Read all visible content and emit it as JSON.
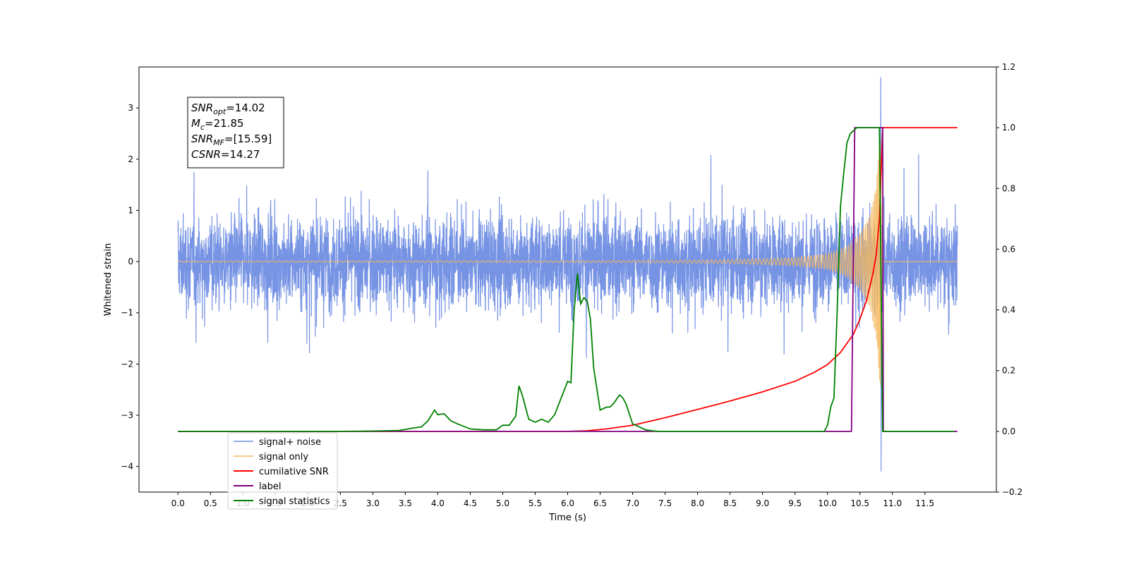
{
  "chart_data": {
    "type": "line",
    "xlabel": "Time (s)",
    "ylabel": "Whitened strain",
    "xlim": [
      -0.6,
      12.6
    ],
    "ylim_left": [
      -4.5,
      3.8
    ],
    "ylim_right": [
      -0.2,
      1.2
    ],
    "x_ticks": [
      0.0,
      0.5,
      1.0,
      1.5,
      2.0,
      2.5,
      3.0,
      3.5,
      4.0,
      4.5,
      5.0,
      5.5,
      6.0,
      6.5,
      7.0,
      7.5,
      8.0,
      8.5,
      9.0,
      9.5,
      10.0,
      10.5,
      11.0,
      11.5
    ],
    "x_tick_labels": [
      "0.0",
      "0.5",
      "1.0",
      "1.5",
      "2.0",
      "2.5",
      "3.0",
      "3.5",
      "4.0",
      "4.5",
      "5.0",
      "5.5",
      "6.0",
      "6.5",
      "7.0",
      "7.5",
      "8.0",
      "8.5",
      "9.0",
      "9.5",
      "10.0",
      "10.5",
      "11.0",
      "11.5"
    ],
    "y_ticks_left": [
      -4,
      -3,
      -2,
      -1,
      0,
      1,
      2,
      3
    ],
    "y_tick_labels_left": [
      "−4",
      "−3",
      "−2",
      "−1",
      "0",
      "1",
      "2",
      "3"
    ],
    "y_ticks_right": [
      -0.2,
      0.0,
      0.2,
      0.4,
      0.6,
      0.8,
      1.0,
      1.2
    ],
    "y_tick_labels_right": [
      "−0.2",
      "0.0",
      "0.2",
      "0.4",
      "0.6",
      "0.8",
      "1.0",
      "1.2"
    ],
    "grid": false,
    "legend_position": "lower-left",
    "annotation": {
      "lines": [
        {
          "label": "SNR",
          "sub": "opt",
          "value": "=14.02"
        },
        {
          "label": "M",
          "sub": "c",
          "value": "=21.85"
        },
        {
          "label": "SNR",
          "sub": "MF",
          "value": "=[15.59]"
        },
        {
          "label": "CSNR",
          "sub": "",
          "value": "=14.27"
        }
      ]
    },
    "series": [
      {
        "name": "signal+ noise",
        "axis": "left",
        "color": "#6f8de3",
        "style": "dense noise band about 0, typical range -1.5 to 1.5 with spikes; min -4.1 at 10.82 s, max 3.6 at 10.82 s",
        "x_range": [
          0.0,
          12.0
        ],
        "envelope": [
          1.0,
          1.0
        ]
      },
      {
        "name": "signal only",
        "axis": "left",
        "color": "#f5b860",
        "style": "chirp, amplitude grows toward merger then ends",
        "x_range": [
          0.0,
          12.0
        ],
        "envelope_points": [
          {
            "x": 0.0,
            "amp": 0.01
          },
          {
            "x": 7.0,
            "amp": 0.02
          },
          {
            "x": 8.5,
            "amp": 0.04
          },
          {
            "x": 9.5,
            "amp": 0.08
          },
          {
            "x": 10.0,
            "amp": 0.15
          },
          {
            "x": 10.3,
            "amp": 0.3
          },
          {
            "x": 10.5,
            "amp": 0.55
          },
          {
            "x": 10.65,
            "amp": 0.9
          },
          {
            "x": 10.75,
            "amp": 1.5
          },
          {
            "x": 10.82,
            "amp": 2.6
          },
          {
            "x": 10.84,
            "amp": 0.0
          }
        ]
      },
      {
        "name": "cumilative SNR",
        "axis": "right",
        "color": "#ff0000",
        "x": [
          0.0,
          6.0,
          6.3,
          6.6,
          7.0,
          7.5,
          8.0,
          8.5,
          9.0,
          9.5,
          9.8,
          10.0,
          10.2,
          10.4,
          10.5,
          10.6,
          10.7,
          10.75,
          10.8,
          10.85,
          11.2,
          11.5,
          12.0
        ],
        "y": [
          0.0,
          0.0,
          0.002,
          0.008,
          0.02,
          0.045,
          0.072,
          0.1,
          0.13,
          0.165,
          0.195,
          0.22,
          0.26,
          0.32,
          0.37,
          0.43,
          0.52,
          0.58,
          0.7,
          1.0,
          1.0,
          1.0,
          1.0
        ]
      },
      {
        "name": "label",
        "axis": "right",
        "color": "#800080",
        "x": [
          0.0,
          10.37,
          10.42,
          10.85,
          10.86,
          12.0
        ],
        "y": [
          0.0,
          0.0,
          1.0,
          1.0,
          0.0,
          0.0
        ]
      },
      {
        "name": "signal statistics",
        "axis": "right",
        "color": "#008000",
        "x": [
          0.0,
          0.5,
          1.0,
          1.5,
          2.0,
          2.5,
          3.0,
          3.4,
          3.6,
          3.75,
          3.85,
          3.95,
          4.0,
          4.1,
          4.2,
          4.3,
          4.5,
          4.7,
          4.9,
          5.0,
          5.1,
          5.2,
          5.25,
          5.3,
          5.35,
          5.4,
          5.5,
          5.6,
          5.7,
          5.8,
          5.9,
          6.0,
          6.05,
          6.1,
          6.15,
          6.2,
          6.25,
          6.3,
          6.35,
          6.4,
          6.45,
          6.5,
          6.6,
          6.65,
          6.7,
          6.8,
          6.85,
          6.9,
          7.0,
          7.05,
          7.1,
          7.2,
          7.3,
          7.4,
          7.5,
          8.0,
          9.0,
          9.95,
          10.0,
          10.05,
          10.1,
          10.15,
          10.2,
          10.25,
          10.3,
          10.35,
          10.45,
          10.55,
          10.8,
          10.85,
          11.0,
          11.5,
          11.95
        ],
        "y": [
          0.0,
          0.0,
          0.0,
          0.0,
          0.0,
          0.0,
          0.001,
          0.003,
          0.01,
          0.015,
          0.035,
          0.07,
          0.055,
          0.058,
          0.035,
          0.025,
          0.008,
          0.005,
          0.005,
          0.02,
          0.02,
          0.05,
          0.15,
          0.12,
          0.08,
          0.04,
          0.03,
          0.04,
          0.03,
          0.055,
          0.11,
          0.165,
          0.16,
          0.4,
          0.52,
          0.42,
          0.44,
          0.43,
          0.37,
          0.21,
          0.14,
          0.07,
          0.08,
          0.08,
          0.09,
          0.12,
          0.11,
          0.09,
          0.025,
          0.02,
          0.015,
          0.005,
          0.002,
          0.0,
          0.0,
          0.0,
          0.0,
          0.0,
          0.02,
          0.08,
          0.11,
          0.4,
          0.74,
          0.85,
          0.95,
          0.98,
          1.0,
          1.0,
          1.0,
          0.0,
          0.0,
          0.0,
          0.0
        ]
      }
    ]
  }
}
